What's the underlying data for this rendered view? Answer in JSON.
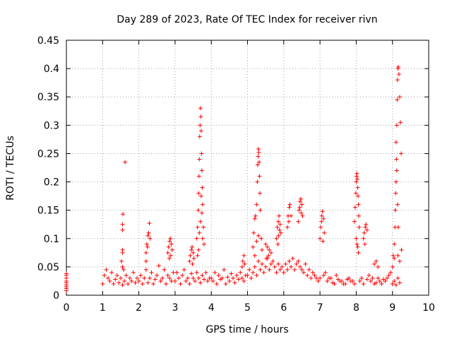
{
  "chart_data": {
    "type": "scatter",
    "title": "Day 289 of 2023, Rate Of TEC Index for receiver rivn",
    "xlabel": "GPS time / hours",
    "ylabel": "ROTI / TECUs",
    "xlim": [
      0,
      10
    ],
    "ylim": [
      0,
      0.45
    ],
    "xticks": [
      0,
      1,
      2,
      3,
      4,
      5,
      6,
      7,
      8,
      9,
      10
    ],
    "yticks": [
      0,
      0.05,
      0.1,
      0.15,
      0.2,
      0.25,
      0.3,
      0.35,
      0.4,
      0.45
    ],
    "xtick_labels": [
      "0",
      "1",
      "2",
      "3",
      "4",
      "5",
      "6",
      "7",
      "8",
      "9",
      "10"
    ],
    "ytick_labels": [
      "0",
      "0.05",
      "0.1",
      "0.15",
      "0.2",
      "0.25",
      "0.3",
      "0.35",
      "0.4",
      "0.45"
    ],
    "grid": true,
    "marker": "+",
    "series_color": "#ff0000",
    "series": [
      {
        "name": "ROTI",
        "x": [
          0.0,
          0.0,
          0.0,
          0.0,
          0.0,
          0.0,
          0.0,
          0.0,
          0.0,
          1.0,
          1.05,
          1.1,
          1.15,
          1.2,
          1.25,
          1.3,
          1.35,
          1.4,
          1.45,
          1.5,
          1.55,
          1.6,
          1.65,
          1.7,
          1.75,
          1.8,
          1.85,
          1.9,
          1.95,
          1.55,
          1.55,
          1.55,
          1.55,
          1.56,
          1.62,
          1.55,
          1.52,
          1.58,
          2.0,
          2.05,
          2.1,
          2.15,
          2.2,
          2.25,
          2.3,
          2.35,
          2.4,
          2.45,
          2.5,
          2.55,
          2.6,
          2.65,
          2.7,
          2.75,
          2.8,
          2.85,
          2.9,
          2.95,
          2.2,
          2.22,
          2.25,
          2.27,
          2.29,
          2.31,
          2.24,
          2.2,
          2.8,
          2.82,
          2.85,
          2.87,
          2.9,
          2.92,
          2.84,
          2.88,
          3.0,
          3.05,
          3.1,
          3.15,
          3.2,
          3.25,
          3.3,
          3.35,
          3.4,
          3.45,
          3.5,
          3.55,
          3.6,
          3.65,
          3.7,
          3.75,
          3.8,
          3.85,
          3.9,
          3.95,
          3.4,
          3.42,
          3.45,
          3.47,
          3.5,
          3.52,
          3.48,
          3.6,
          3.62,
          3.64,
          3.65,
          3.66,
          3.67,
          3.68,
          3.69,
          3.7,
          3.71,
          3.72,
          3.73,
          3.74,
          3.75,
          3.76,
          3.78,
          3.8,
          3.62,
          3.65,
          3.67,
          3.7,
          3.72,
          3.74,
          3.76,
          4.0,
          4.05,
          4.1,
          4.15,
          4.2,
          4.25,
          4.3,
          4.35,
          4.4,
          4.45,
          4.5,
          4.55,
          4.6,
          4.65,
          4.7,
          4.75,
          4.8,
          4.85,
          4.9,
          4.95,
          4.85,
          4.87,
          4.9,
          4.92,
          5.0,
          5.05,
          5.1,
          5.15,
          5.2,
          5.25,
          5.3,
          5.35,
          5.4,
          5.45,
          5.5,
          5.55,
          5.6,
          5.65,
          5.7,
          5.75,
          5.8,
          5.85,
          5.9,
          5.95,
          5.15,
          5.17,
          5.2,
          5.22,
          5.25,
          5.27,
          5.28,
          5.29,
          5.3,
          5.31,
          5.32,
          5.33,
          5.34,
          5.35,
          5.38,
          5.4,
          5.2,
          5.25,
          5.3,
          5.5,
          5.55,
          5.6,
          5.65,
          5.52,
          5.58,
          5.8,
          5.82,
          5.85,
          5.87,
          5.9,
          5.92,
          5.84,
          5.88,
          5.86,
          6.0,
          6.05,
          6.1,
          6.15,
          6.2,
          6.25,
          6.3,
          6.35,
          6.4,
          6.45,
          6.5,
          6.55,
          6.6,
          6.65,
          6.7,
          6.75,
          6.8,
          6.85,
          6.9,
          6.95,
          6.1,
          6.12,
          6.15,
          6.17,
          6.2,
          6.14,
          6.4,
          6.42,
          6.45,
          6.47,
          6.5,
          6.52,
          6.44,
          6.48,
          7.0,
          7.02,
          7.05,
          7.07,
          7.1,
          7.12,
          7.04,
          7.08,
          7.0,
          7.1,
          7.2,
          7.3,
          7.4,
          7.5,
          7.6,
          7.7,
          7.8,
          7.9,
          7.15,
          7.25,
          7.35,
          7.45,
          7.55,
          7.65,
          7.75,
          7.85,
          7.95,
          7.95,
          7.97,
          7.99,
          8.0,
          8.01,
          8.02,
          8.03,
          8.04,
          8.05,
          8.06,
          8.07,
          8.08,
          8.0,
          8.02,
          8.04,
          8.06,
          8.2,
          8.22,
          8.25,
          8.27,
          8.3,
          8.24,
          8.1,
          8.15,
          8.2,
          8.3,
          8.35,
          8.4,
          8.45,
          8.5,
          8.55,
          8.6,
          8.65,
          8.7,
          8.75,
          8.8,
          8.85,
          8.9,
          8.95,
          8.5,
          8.55,
          8.6,
          9.0,
          9.02,
          9.05,
          9.07,
          9.08,
          9.09,
          9.1,
          9.11,
          9.12,
          9.13,
          9.14,
          9.15,
          9.16,
          9.18,
          9.2,
          9.22,
          9.24,
          9.1,
          9.12,
          9.14,
          9.16,
          9.0,
          9.05,
          9.1,
          9.15,
          9.2,
          9.25,
          9.05,
          9.15,
          9.2
        ],
        "y": [
          0.012,
          0.018,
          0.022,
          0.03,
          0.038,
          0.008,
          0.015,
          0.025,
          0.035,
          0.02,
          0.035,
          0.045,
          0.03,
          0.025,
          0.04,
          0.02,
          0.028,
          0.035,
          0.022,
          0.03,
          0.018,
          0.025,
          0.035,
          0.02,
          0.03,
          0.025,
          0.04,
          0.022,
          0.03,
          0.075,
          0.08,
          0.115,
          0.125,
          0.143,
          0.235,
          0.05,
          0.06,
          0.045,
          0.025,
          0.035,
          0.02,
          0.03,
          0.045,
          0.022,
          0.03,
          0.04,
          0.02,
          0.028,
          0.035,
          0.052,
          0.025,
          0.03,
          0.045,
          0.02,
          0.035,
          0.03,
          0.025,
          0.04,
          0.075,
          0.09,
          0.105,
          0.11,
          0.127,
          0.1,
          0.085,
          0.06,
          0.075,
          0.085,
          0.095,
          0.1,
          0.09,
          0.08,
          0.065,
          0.07,
          0.025,
          0.04,
          0.03,
          0.02,
          0.035,
          0.045,
          0.025,
          0.03,
          0.02,
          0.038,
          0.03,
          0.025,
          0.04,
          0.03,
          0.022,
          0.035,
          0.028,
          0.04,
          0.025,
          0.03,
          0.06,
          0.07,
          0.08,
          0.085,
          0.075,
          0.065,
          0.055,
          0.1,
          0.12,
          0.15,
          0.18,
          0.21,
          0.24,
          0.28,
          0.3,
          0.33,
          0.315,
          0.29,
          0.25,
          0.22,
          0.19,
          0.16,
          0.12,
          0.09,
          0.07,
          0.08,
          0.11,
          0.13,
          0.175,
          0.145,
          0.1,
          0.03,
          0.025,
          0.04,
          0.02,
          0.035,
          0.028,
          0.03,
          0.045,
          0.02,
          0.032,
          0.025,
          0.038,
          0.03,
          0.022,
          0.035,
          0.028,
          0.04,
          0.03,
          0.025,
          0.035,
          0.05,
          0.06,
          0.07,
          0.055,
          0.035,
          0.045,
          0.03,
          0.04,
          0.05,
          0.035,
          0.06,
          0.045,
          0.055,
          0.04,
          0.05,
          0.065,
          0.045,
          0.055,
          0.06,
          0.05,
          0.04,
          0.055,
          0.045,
          0.05,
          0.085,
          0.11,
          0.135,
          0.14,
          0.16,
          0.2,
          0.23,
          0.245,
          0.258,
          0.252,
          0.235,
          0.21,
          0.18,
          0.15,
          0.1,
          0.08,
          0.07,
          0.095,
          0.105,
          0.09,
          0.085,
          0.08,
          0.075,
          0.065,
          0.07,
          0.1,
          0.12,
          0.13,
          0.14,
          0.125,
          0.11,
          0.09,
          0.115,
          0.105,
          0.04,
          0.055,
          0.045,
          0.06,
          0.05,
          0.065,
          0.045,
          0.055,
          0.06,
          0.05,
          0.045,
          0.04,
          0.055,
          0.035,
          0.045,
          0.03,
          0.04,
          0.035,
          0.03,
          0.025,
          0.12,
          0.14,
          0.155,
          0.16,
          0.14,
          0.13,
          0.13,
          0.15,
          0.165,
          0.17,
          0.16,
          0.14,
          0.155,
          0.145,
          0.1,
          0.12,
          0.14,
          0.148,
          0.135,
          0.11,
          0.13,
          0.095,
          0.03,
          0.035,
          0.025,
          0.03,
          0.02,
          0.028,
          0.025,
          0.02,
          0.03,
          0.025,
          0.04,
          0.03,
          0.022,
          0.035,
          0.025,
          0.02,
          0.028,
          0.025,
          0.02,
          0.13,
          0.155,
          0.18,
          0.2,
          0.21,
          0.215,
          0.205,
          0.19,
          0.175,
          0.16,
          0.14,
          0.12,
          0.1,
          0.09,
          0.085,
          0.075,
          0.1,
          0.11,
          0.12,
          0.125,
          0.115,
          0.09,
          0.025,
          0.03,
          0.02,
          0.028,
          0.035,
          0.025,
          0.03,
          0.02,
          0.022,
          0.03,
          0.025,
          0.02,
          0.028,
          0.025,
          0.03,
          0.035,
          0.04,
          0.055,
          0.06,
          0.05,
          0.05,
          0.07,
          0.09,
          0.12,
          0.15,
          0.18,
          0.2,
          0.24,
          0.3,
          0.345,
          0.38,
          0.4,
          0.403,
          0.39,
          0.35,
          0.305,
          0.25,
          0.27,
          0.22,
          0.16,
          0.12,
          0.02,
          0.025,
          0.018,
          0.03,
          0.022,
          0.08,
          0.065,
          0.07,
          0.06
        ]
      }
    ]
  }
}
